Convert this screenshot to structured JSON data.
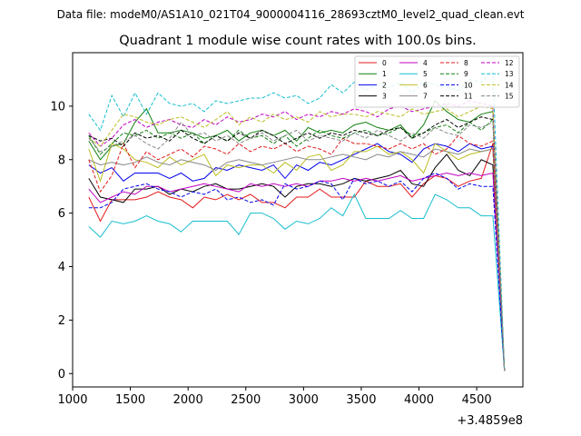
{
  "suptitle": "Data file: modeM0/AS1A10_021T04_9000004116_28693cztM0_level2_quad_clean.evt",
  "chart_data": {
    "type": "line",
    "title": "Quadrant 1 module wise count rates with 100.0s bins.",
    "xlabel": "",
    "ylabel": "",
    "x_offset_label": "+3.4859e8",
    "xlim": [
      1000,
      4900
    ],
    "ylim": [
      -0.5,
      12.0
    ],
    "xticks": [
      1000,
      1500,
      2000,
      2500,
      3000,
      3500,
      4000,
      4500
    ],
    "yticks": [
      0,
      2,
      4,
      6,
      8,
      10
    ],
    "grid": false,
    "legend_position": "top-right",
    "x": [
      1140,
      1240,
      1340,
      1440,
      1540,
      1640,
      1740,
      1840,
      1940,
      2040,
      2140,
      2240,
      2340,
      2440,
      2540,
      2640,
      2740,
      2840,
      2940,
      3040,
      3140,
      3240,
      3340,
      3440,
      3540,
      3640,
      3740,
      3840,
      3940,
      4040,
      4140,
      4240,
      4340,
      4440,
      4540,
      4640,
      4740
    ],
    "series": [
      {
        "name": "0",
        "color": "#e41a1c",
        "dash": "solid",
        "values": [
          6.6,
          5.7,
          6.5,
          6.5,
          6.5,
          6.6,
          6.8,
          6.6,
          6.5,
          6.2,
          6.6,
          6.5,
          6.7,
          6.5,
          6.7,
          6.4,
          6.4,
          6.2,
          6.6,
          6.6,
          6.9,
          6.6,
          6.6,
          6.6,
          7.2,
          7.0,
          7.0,
          7.1,
          6.6,
          7.1,
          7.4,
          7.3,
          7.0,
          7.2,
          7.3,
          8.6,
          0.1
        ]
      },
      {
        "name": "1",
        "color": "#108010",
        "dash": "solid",
        "values": [
          8.7,
          8.0,
          8.5,
          8.6,
          9.4,
          9.9,
          9.0,
          9.0,
          9.1,
          9.0,
          8.8,
          8.9,
          9.1,
          8.7,
          9.0,
          9.1,
          8.9,
          9.1,
          8.7,
          9.2,
          9.0,
          9.1,
          9.0,
          9.3,
          9.4,
          9.2,
          9.1,
          9.3,
          8.8,
          9.3,
          10.2,
          9.8,
          9.5,
          9.4,
          9.7,
          9.8,
          0.1
        ]
      },
      {
        "name": "2",
        "color": "#0000ee",
        "dash": "solid",
        "values": [
          7.8,
          7.5,
          7.7,
          7.2,
          7.5,
          7.5,
          7.5,
          7.3,
          7.5,
          7.2,
          7.3,
          7.7,
          7.6,
          7.8,
          7.7,
          7.6,
          7.8,
          7.3,
          7.8,
          7.6,
          7.9,
          7.8,
          8.0,
          8.2,
          8.4,
          8.6,
          8.3,
          8.2,
          7.9,
          8.4,
          8.6,
          8.5,
          8.3,
          8.6,
          8.4,
          8.5,
          0.1
        ]
      },
      {
        "name": "3",
        "color": "#000000",
        "dash": "solid",
        "values": [
          7.3,
          6.6,
          6.5,
          6.4,
          6.9,
          6.9,
          7.0,
          6.7,
          6.9,
          6.8,
          7.0,
          7.1,
          6.9,
          6.9,
          7.0,
          7.1,
          7.0,
          6.6,
          7.0,
          7.1,
          7.1,
          7.0,
          7.1,
          7.3,
          7.2,
          7.3,
          7.4,
          7.6,
          7.1,
          7.0,
          7.7,
          8.2,
          7.6,
          7.4,
          8.0,
          7.8,
          0.1
        ]
      },
      {
        "name": "4",
        "color": "#c000c0",
        "dash": "solid",
        "values": [
          6.9,
          6.4,
          6.6,
          6.8,
          6.7,
          7.0,
          7.0,
          6.8,
          6.9,
          7.0,
          7.1,
          7.0,
          6.9,
          6.8,
          7.1,
          7.0,
          7.1,
          7.0,
          7.1,
          7.0,
          7.2,
          7.2,
          7.3,
          7.2,
          7.3,
          7.2,
          7.3,
          7.4,
          7.2,
          7.3,
          7.4,
          7.5,
          7.4,
          7.5,
          7.4,
          7.5,
          0.1
        ]
      },
      {
        "name": "5",
        "color": "#17becf",
        "dash": "solid",
        "values": [
          5.5,
          5.1,
          5.7,
          5.6,
          5.7,
          5.9,
          5.7,
          5.6,
          5.3,
          5.7,
          5.7,
          5.7,
          5.7,
          5.2,
          6.0,
          6.0,
          5.8,
          5.4,
          5.7,
          5.6,
          5.8,
          6.2,
          5.9,
          6.7,
          5.8,
          5.8,
          5.8,
          6.1,
          5.8,
          5.8,
          6.7,
          6.5,
          6.2,
          6.2,
          5.9,
          5.9,
          0.1
        ]
      },
      {
        "name": "6",
        "color": "#bcbd22",
        "dash": "solid",
        "values": [
          8.4,
          7.2,
          8.6,
          8.4,
          8.0,
          7.9,
          7.7,
          8.1,
          7.8,
          8.0,
          8.2,
          7.4,
          7.8,
          7.7,
          7.8,
          7.8,
          7.5,
          7.9,
          7.6,
          8.1,
          8.2,
          7.6,
          7.8,
          8.3,
          8.3,
          8.5,
          8.2,
          8.3,
          8.0,
          7.5,
          8.6,
          8.3,
          8.0,
          8.2,
          8.3,
          8.4,
          0.1
        ]
      },
      {
        "name": "7",
        "color": "#888888",
        "dash": "solid",
        "values": [
          8.0,
          7.8,
          7.9,
          7.8,
          7.9,
          8.1,
          7.9,
          7.8,
          8.0,
          7.9,
          7.8,
          7.6,
          7.9,
          8.0,
          7.9,
          7.8,
          7.9,
          8.0,
          8.1,
          8.0,
          8.0,
          8.1,
          8.2,
          8.1,
          8.0,
          8.2,
          8.1,
          8.3,
          8.2,
          8.1,
          8.4,
          8.3,
          8.2,
          8.4,
          8.3,
          8.4,
          0.1
        ]
      },
      {
        "name": "8",
        "color": "#e41a1c",
        "dash": "dashed",
        "values": [
          8.0,
          6.8,
          7.4,
          8.6,
          7.7,
          8.3,
          8.0,
          8.2,
          8.4,
          8.1,
          8.5,
          8.4,
          8.2,
          8.6,
          8.3,
          8.5,
          8.4,
          8.6,
          8.3,
          8.5,
          8.4,
          8.2,
          8.8,
          8.6,
          8.6,
          8.5,
          8.4,
          8.6,
          8.4,
          8.6,
          8.2,
          8.4,
          8.9,
          8.6,
          8.5,
          8.7,
          0.1
        ]
      },
      {
        "name": "9",
        "color": "#108010",
        "dash": "dashed",
        "values": [
          8.9,
          8.2,
          8.6,
          9.0,
          8.9,
          9.1,
          8.8,
          9.0,
          8.8,
          9.0,
          8.6,
          8.9,
          8.7,
          9.1,
          8.8,
          8.9,
          8.6,
          8.9,
          8.5,
          8.8,
          9.1,
          8.9,
          8.8,
          9.0,
          9.1,
          8.9,
          9.0,
          9.2,
          8.9,
          9.0,
          9.2,
          9.3,
          9.0,
          9.4,
          9.1,
          9.5,
          0.1
        ]
      },
      {
        "name": "10",
        "color": "#0000ee",
        "dash": "dashed",
        "values": [
          6.2,
          6.2,
          6.4,
          6.9,
          7.0,
          7.1,
          6.9,
          6.8,
          6.6,
          6.8,
          6.7,
          6.9,
          6.5,
          6.6,
          6.4,
          6.5,
          6.3,
          7.1,
          6.9,
          7.0,
          7.2,
          7.1,
          6.5,
          7.3,
          7.1,
          7.2,
          7.0,
          7.2,
          6.8,
          7.3,
          7.5,
          7.3,
          6.9,
          7.1,
          7.0,
          7.0,
          0.1
        ]
      },
      {
        "name": "11",
        "color": "#000000",
        "dash": "dashed",
        "values": [
          8.9,
          8.7,
          8.8,
          8.5,
          9.0,
          8.8,
          8.9,
          8.7,
          9.1,
          8.8,
          8.6,
          8.9,
          8.7,
          9.0,
          8.8,
          9.1,
          8.9,
          8.6,
          8.8,
          9.0,
          8.8,
          9.0,
          8.9,
          9.1,
          9.0,
          8.9,
          9.1,
          9.2,
          8.8,
          9.0,
          9.3,
          9.5,
          9.2,
          9.4,
          9.6,
          9.5,
          0.1
        ]
      },
      {
        "name": "12",
        "color": "#c000c0",
        "dash": "dashed",
        "values": [
          9.0,
          8.5,
          8.8,
          9.3,
          9.5,
          9.2,
          9.4,
          9.5,
          9.3,
          9.2,
          9.5,
          9.3,
          9.6,
          9.4,
          9.5,
          9.7,
          9.6,
          9.8,
          9.5,
          9.7,
          9.6,
          9.8,
          9.7,
          9.9,
          9.8,
          9.6,
          9.9,
          10.0,
          9.8,
          9.9,
          10.0,
          10.1,
          10.0,
          10.2,
          10.1,
          10.0,
          0.1
        ]
      },
      {
        "name": "13",
        "color": "#17becf",
        "dash": "dashed",
        "values": [
          9.7,
          9.1,
          10.4,
          9.6,
          10.5,
          9.7,
          10.5,
          10.1,
          10.0,
          10.1,
          9.8,
          10.2,
          10.1,
          10.2,
          10.3,
          10.3,
          10.5,
          10.3,
          10.4,
          10.1,
          10.3,
          10.8,
          10.5,
          10.9,
          10.6,
          10.8,
          10.7,
          10.9,
          10.5,
          10.9,
          10.8,
          10.7,
          10.6,
          11.0,
          10.9,
          11.3,
          0.1
        ]
      },
      {
        "name": "14",
        "color": "#bcbd22",
        "dash": "dashed",
        "values": [
          8.8,
          8.5,
          9.1,
          9.7,
          9.6,
          9.4,
          9.3,
          9.5,
          9.6,
          9.4,
          9.2,
          9.5,
          9.8,
          9.3,
          9.6,
          9.4,
          9.7,
          9.5,
          9.6,
          9.4,
          9.8,
          9.6,
          9.7,
          9.7,
          9.6,
          9.8,
          9.7,
          9.6,
          9.9,
          9.7,
          9.8,
          9.9,
          9.6,
          9.8,
          10.0,
          9.9,
          0.1
        ]
      },
      {
        "name": "15",
        "color": "#888888",
        "dash": "dashed",
        "values": [
          8.8,
          8.3,
          8.5,
          8.7,
          8.9,
          8.6,
          8.4,
          8.8,
          9.4,
          8.9,
          9.0,
          8.7,
          8.9,
          8.6,
          8.8,
          9.0,
          8.7,
          8.9,
          9.1,
          8.7,
          8.9,
          8.8,
          8.7,
          9.0,
          8.8,
          9.1,
          8.9,
          8.7,
          9.0,
          8.8,
          9.2,
          9.0,
          8.9,
          9.3,
          9.2,
          9.4,
          0.1
        ]
      }
    ]
  }
}
